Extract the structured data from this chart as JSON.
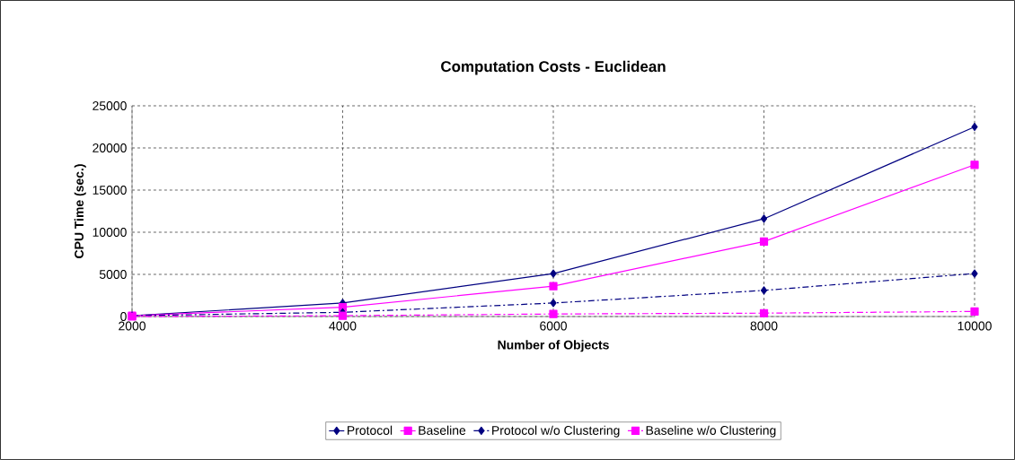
{
  "chart_data": {
    "type": "line",
    "title": "Computation Costs - Euclidean",
    "xlabel": "Number of Objects",
    "ylabel": "CPU Time (sec.)",
    "x": [
      2000,
      4000,
      6000,
      8000,
      10000
    ],
    "series": [
      {
        "name": "Protocol",
        "color": "#000080",
        "marker": "diamond",
        "line_style": "solid",
        "values": [
          100,
          1600,
          5100,
          11600,
          22500
        ]
      },
      {
        "name": "Baseline",
        "color": "#ff00ff",
        "marker": "square",
        "line_style": "solid",
        "values": [
          100,
          1100,
          3600,
          8900,
          18000
        ]
      },
      {
        "name": "Protocol w/o Clustering",
        "color": "#000080",
        "marker": "diamond",
        "line_style": "dashdot",
        "values": [
          100,
          500,
          1600,
          3100,
          5100
        ]
      },
      {
        "name": "Baseline w/o Clustering",
        "color": "#ff00ff",
        "marker": "square",
        "line_style": "dashdot",
        "values": [
          0,
          100,
          300,
          400,
          600
        ]
      }
    ],
    "xlim": [
      2000,
      10000
    ],
    "xticks": [
      2000,
      4000,
      6000,
      8000,
      10000
    ],
    "ylim": [
      0,
      25000
    ],
    "yticks": [
      0,
      5000,
      10000,
      15000,
      20000,
      25000
    ],
    "grid": true,
    "legend": "bottom"
  }
}
